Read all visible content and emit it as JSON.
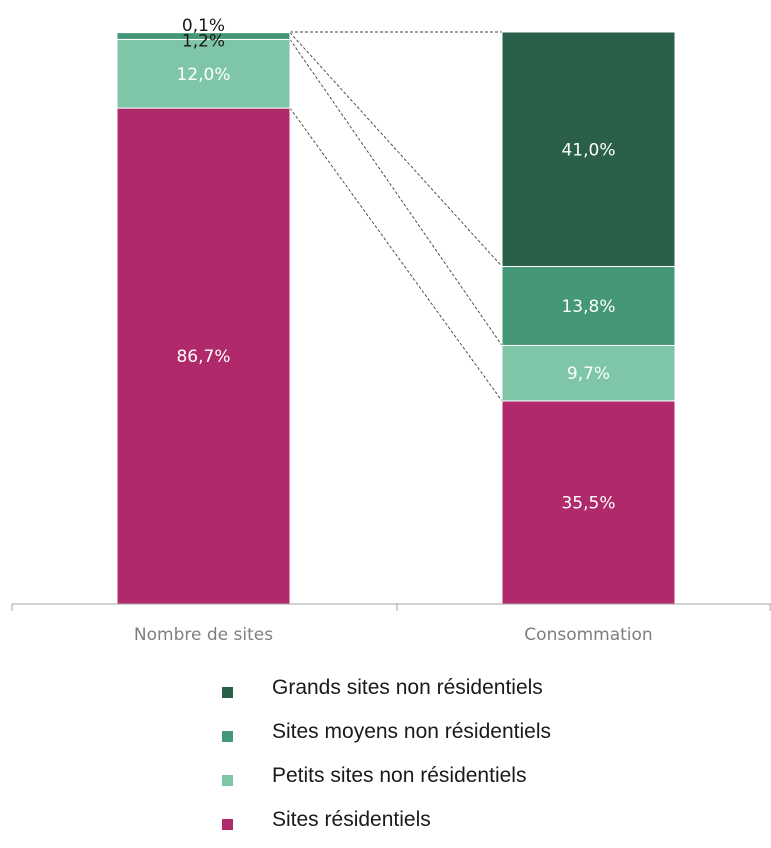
{
  "chart_data": {
    "type": "bar",
    "stacked": true,
    "categories": [
      "Nombre de sites",
      "Consommation"
    ],
    "ylim": [
      0,
      100
    ],
    "grid": false,
    "legend_position": "bottom",
    "series": [
      {
        "key": "residentiel",
        "name": "Sites résidentiels",
        "color": "#b02a6b",
        "label_color": "#ffffff",
        "values": [
          86.7,
          35.5
        ],
        "labels": [
          "86,7%",
          "35,5%"
        ]
      },
      {
        "key": "petits",
        "name": "Petits sites non résidentiels",
        "color": "#7fc6a9",
        "label_color": "#ffffff",
        "values": [
          12.0,
          9.7
        ],
        "labels": [
          "12,0%",
          "9,7%"
        ]
      },
      {
        "key": "moyens",
        "name": "Sites moyens non résidentiels",
        "color": "#449777",
        "label_color": "#ffffff",
        "values": [
          1.2,
          13.8
        ],
        "labels": [
          "1,2%",
          "13,8%"
        ]
      },
      {
        "key": "grands",
        "name": "Grands sites non résidentiels",
        "color": "#2a5f4a",
        "label_color": "#ffffff",
        "values": [
          0.1,
          41.0
        ],
        "labels": [
          "0,1%",
          "41,0%"
        ]
      }
    ]
  },
  "legend": [
    {
      "label": "Grands sites non résidentiels",
      "color": "#2a5f4a"
    },
    {
      "label": "Sites moyens non résidentiels",
      "color": "#449777"
    },
    {
      "label": "Petits sites non résidentiels",
      "color": "#7fc6a9"
    },
    {
      "label": "Sites résidentiels",
      "color": "#b02a6b"
    }
  ]
}
